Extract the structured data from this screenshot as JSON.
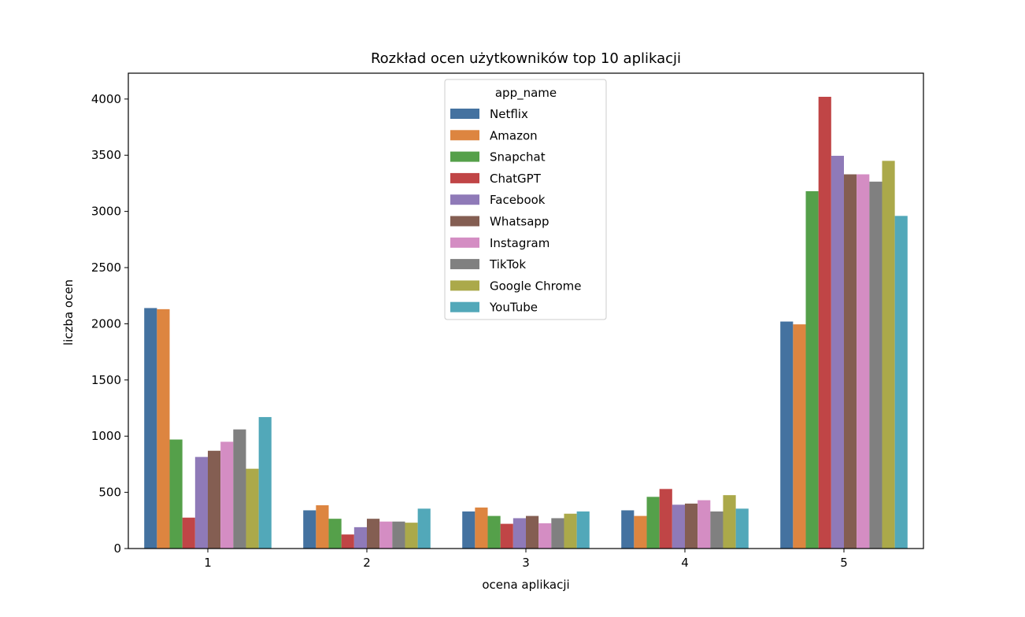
{
  "chart_data": {
    "type": "bar",
    "title": "Rozkład ocen użytkowników top 10 aplikacji",
    "xlabel": "ocena aplikacji",
    "ylabel": "liczba ocen",
    "categories": [
      "1",
      "2",
      "3",
      "4",
      "5"
    ],
    "ylim": [
      0,
      4230
    ],
    "yticks": [
      0,
      500,
      1000,
      1500,
      2000,
      2500,
      3000,
      3500,
      4000
    ],
    "grid": false,
    "legend": {
      "title": "app_name",
      "placement": "upper-center"
    },
    "series": [
      {
        "name": "Netflix",
        "color": "#4472a0",
        "values": [
          2140,
          340,
          330,
          340,
          2020
        ]
      },
      {
        "name": "Amazon",
        "color": "#dd8540",
        "values": [
          2130,
          385,
          365,
          290,
          1995
        ]
      },
      {
        "name": "Snapchat",
        "color": "#55a04a",
        "values": [
          970,
          265,
          290,
          460,
          3180
        ]
      },
      {
        "name": "ChatGPT",
        "color": "#c04546",
        "values": [
          275,
          125,
          220,
          530,
          4020
        ]
      },
      {
        "name": "Facebook",
        "color": "#8f7ab8",
        "values": [
          815,
          190,
          270,
          390,
          3495
        ]
      },
      {
        "name": "Whatsapp",
        "color": "#845e52",
        "values": [
          870,
          265,
          290,
          400,
          3330
        ]
      },
      {
        "name": "Instagram",
        "color": "#d48dc3",
        "values": [
          950,
          240,
          225,
          430,
          3330
        ]
      },
      {
        "name": "TikTok",
        "color": "#808080",
        "values": [
          1060,
          240,
          270,
          330,
          3265
        ]
      },
      {
        "name": "Google Chrome",
        "color": "#aba94a",
        "values": [
          710,
          230,
          310,
          475,
          3450
        ]
      },
      {
        "name": "YouTube",
        "color": "#52a8b9",
        "values": [
          1170,
          355,
          330,
          355,
          2960
        ]
      }
    ]
  }
}
